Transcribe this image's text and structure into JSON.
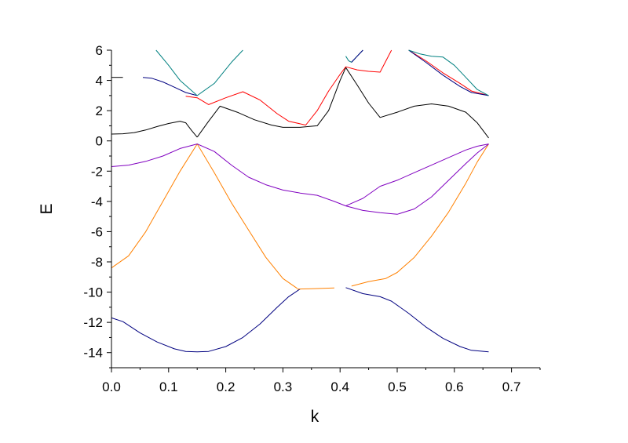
{
  "chart_data": {
    "type": "line",
    "xlabel": "k",
    "ylabel": "E",
    "xlim": [
      0.0,
      0.75
    ],
    "ylim": [
      -15,
      6
    ],
    "xticks": [
      "0.0",
      "0.1",
      "0.2",
      "0.3",
      "0.4",
      "0.5",
      "0.6",
      "0.7"
    ],
    "yticks": [
      "-14",
      "-12",
      "-10",
      "-8",
      "-6",
      "-4",
      "-2",
      "0",
      "2",
      "4",
      "6"
    ],
    "grid": false,
    "series": [
      {
        "color": "#000080",
        "x": [
          0.0,
          0.02,
          0.05,
          0.08,
          0.11,
          0.13,
          0.15,
          0.17,
          0.2,
          0.23,
          0.26,
          0.29,
          0.31,
          0.33
        ],
        "y": [
          -11.7,
          -11.95,
          -12.7,
          -13.3,
          -13.75,
          -13.92,
          -13.95,
          -13.92,
          -13.6,
          -13.0,
          -12.1,
          -11.0,
          -10.3,
          -9.8
        ]
      },
      {
        "color": "#000080",
        "x": [
          0.41,
          0.44,
          0.47,
          0.49,
          0.52,
          0.55,
          0.58,
          0.61,
          0.63,
          0.66
        ],
        "y": [
          -9.7,
          -10.1,
          -10.3,
          -10.6,
          -11.4,
          -12.3,
          -13.05,
          -13.6,
          -13.85,
          -13.95
        ]
      },
      {
        "color": "#ff8000",
        "x": [
          0.0,
          0.03,
          0.06,
          0.09,
          0.12,
          0.15,
          0.18,
          0.21,
          0.24,
          0.27,
          0.3,
          0.325
        ],
        "y": [
          -8.4,
          -7.6,
          -6.0,
          -4.0,
          -2.0,
          -0.2,
          -2.1,
          -4.1,
          -5.9,
          -7.7,
          -9.1,
          -9.75
        ]
      },
      {
        "color": "#ff8000",
        "x": [
          0.325,
          0.35,
          0.37,
          0.39
        ],
        "y": [
          -9.8,
          -9.78,
          -9.75,
          -9.72
        ]
      },
      {
        "color": "#ff8000",
        "x": [
          0.42,
          0.45,
          0.48,
          0.5,
          0.53,
          0.56,
          0.59,
          0.62,
          0.64,
          0.66
        ],
        "y": [
          -9.6,
          -9.3,
          -9.1,
          -8.7,
          -7.7,
          -6.3,
          -4.7,
          -2.8,
          -1.4,
          -0.2
        ]
      },
      {
        "color": "#8000c0",
        "x": [
          0.0,
          0.03,
          0.06,
          0.09,
          0.12,
          0.15,
          0.18,
          0.21,
          0.24,
          0.27,
          0.3,
          0.33,
          0.36,
          0.39,
          0.41,
          0.44,
          0.47,
          0.5,
          0.53,
          0.56,
          0.59,
          0.62,
          0.64,
          0.66
        ],
        "y": [
          -1.7,
          -1.6,
          -1.35,
          -1.0,
          -0.5,
          -0.2,
          -0.7,
          -1.6,
          -2.4,
          -2.9,
          -3.25,
          -3.45,
          -3.6,
          -4.0,
          -4.3,
          -4.6,
          -4.75,
          -4.85,
          -4.5,
          -3.7,
          -2.6,
          -1.5,
          -0.8,
          -0.2
        ]
      },
      {
        "color": "#8000c0",
        "x": [
          0.41,
          0.44,
          0.47,
          0.5,
          0.53,
          0.56,
          0.59,
          0.62,
          0.64,
          0.66
        ],
        "y": [
          -4.3,
          -3.8,
          -3.0,
          -2.6,
          -2.1,
          -1.6,
          -1.1,
          -0.6,
          -0.35,
          -0.2
        ]
      },
      {
        "color": "#000000",
        "x": [
          0.0,
          0.02,
          0.04,
          0.06,
          0.08,
          0.1,
          0.12,
          0.13,
          0.14,
          0.15
        ],
        "y": [
          0.45,
          0.47,
          0.55,
          0.72,
          0.95,
          1.15,
          1.3,
          1.2,
          0.7,
          0.25
        ]
      },
      {
        "color": "#000000",
        "x": [
          0.15,
          0.17,
          0.19,
          0.22,
          0.25,
          0.28,
          0.3,
          0.33,
          0.36,
          0.38,
          0.39,
          0.4,
          0.41,
          0.43,
          0.45,
          0.47,
          0.5,
          0.53,
          0.56,
          0.59,
          0.62,
          0.64,
          0.66
        ],
        "y": [
          0.25,
          1.3,
          2.3,
          1.9,
          1.4,
          1.05,
          0.9,
          0.9,
          1.0,
          2.0,
          3.0,
          4.0,
          4.85,
          3.7,
          2.5,
          1.55,
          1.9,
          2.3,
          2.45,
          2.3,
          1.9,
          1.2,
          0.2
        ]
      },
      {
        "color": "#000000",
        "x": [
          0.0,
          0.02
        ],
        "y": [
          4.2,
          4.2
        ]
      },
      {
        "color": "#ff0000",
        "x": [
          0.13,
          0.15,
          0.17,
          0.2,
          0.23,
          0.26,
          0.29,
          0.31,
          0.34,
          0.36,
          0.38,
          0.4,
          0.41,
          0.43,
          0.45,
          0.47,
          0.49
        ],
        "y": [
          2.95,
          2.85,
          2.4,
          2.85,
          3.25,
          2.7,
          1.8,
          1.3,
          1.05,
          2.0,
          3.3,
          4.4,
          4.9,
          4.7,
          4.6,
          4.55,
          6.0
        ]
      },
      {
        "color": "#ff0000",
        "x": [
          0.52,
          0.55,
          0.58,
          0.61,
          0.63,
          0.66
        ],
        "y": [
          6.0,
          5.3,
          4.5,
          3.8,
          3.3,
          3.0
        ]
      },
      {
        "color": "#000080",
        "x": [
          0.055,
          0.07,
          0.09,
          0.11,
          0.13,
          0.15
        ],
        "y": [
          4.2,
          4.15,
          3.9,
          3.55,
          3.2,
          3.0
        ]
      },
      {
        "color": "#000080",
        "x": [
          0.52,
          0.55,
          0.58,
          0.61,
          0.63,
          0.66
        ],
        "y": [
          6.0,
          5.2,
          4.35,
          3.6,
          3.2,
          3.0
        ]
      },
      {
        "color": "#008080",
        "x": [
          0.078,
          0.1,
          0.12,
          0.15,
          0.18,
          0.21,
          0.23
        ],
        "y": [
          6.0,
          5.0,
          4.0,
          3.0,
          3.8,
          5.2,
          6.0
        ]
      },
      {
        "color": "#008080",
        "x": [
          0.41,
          0.415,
          0.42,
          0.43,
          0.44
        ],
        "y": [
          5.6,
          5.3,
          5.2,
          5.6,
          6.0
        ]
      },
      {
        "color": "#008080",
        "x": [
          0.52,
          0.54,
          0.56,
          0.58,
          0.6,
          0.62,
          0.64,
          0.66
        ],
        "y": [
          6.0,
          5.75,
          5.6,
          5.55,
          5.0,
          4.2,
          3.4,
          3.0
        ]
      },
      {
        "color": "#000080",
        "x": [
          0.42,
          0.43,
          0.44
        ],
        "y": [
          5.2,
          5.6,
          6.0
        ]
      }
    ]
  }
}
